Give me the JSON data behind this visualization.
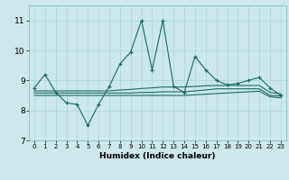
{
  "xlabel": "Humidex (Indice chaleur)",
  "bg_color": "#cce8ea",
  "grid_color": "#aad4d6",
  "line_color": "#1a6b5e",
  "xlim": [
    -0.5,
    23.5
  ],
  "ylim": [
    7.0,
    11.5
  ],
  "yticks": [
    7,
    8,
    9,
    10,
    11
  ],
  "xticks": [
    0,
    1,
    2,
    3,
    4,
    5,
    6,
    7,
    8,
    9,
    10,
    11,
    12,
    13,
    14,
    15,
    16,
    17,
    18,
    19,
    20,
    21,
    22,
    23
  ],
  "main_series": [
    8.75,
    9.2,
    8.6,
    8.25,
    8.2,
    7.5,
    8.2,
    8.8,
    9.55,
    9.95,
    11.0,
    9.35,
    11.0,
    8.8,
    8.6,
    9.8,
    9.35,
    9.0,
    8.85,
    8.9,
    9.0,
    9.1,
    8.75,
    8.5
  ],
  "flat_line1": [
    8.65,
    8.65,
    8.65,
    8.65,
    8.65,
    8.65,
    8.65,
    8.65,
    8.68,
    8.7,
    8.73,
    8.75,
    8.78,
    8.78,
    8.78,
    8.8,
    8.82,
    8.83,
    8.83,
    8.83,
    8.83,
    8.83,
    8.6,
    8.55
  ],
  "flat_line2": [
    8.58,
    8.58,
    8.58,
    8.58,
    8.58,
    8.58,
    8.58,
    8.58,
    8.58,
    8.58,
    8.6,
    8.6,
    8.62,
    8.62,
    8.62,
    8.65,
    8.68,
    8.72,
    8.72,
    8.72,
    8.72,
    8.72,
    8.5,
    8.48
  ],
  "flat_line3": [
    8.5,
    8.5,
    8.5,
    8.5,
    8.5,
    8.5,
    8.5,
    8.5,
    8.5,
    8.5,
    8.5,
    8.5,
    8.5,
    8.5,
    8.5,
    8.52,
    8.54,
    8.56,
    8.58,
    8.6,
    8.62,
    8.64,
    8.45,
    8.42
  ]
}
